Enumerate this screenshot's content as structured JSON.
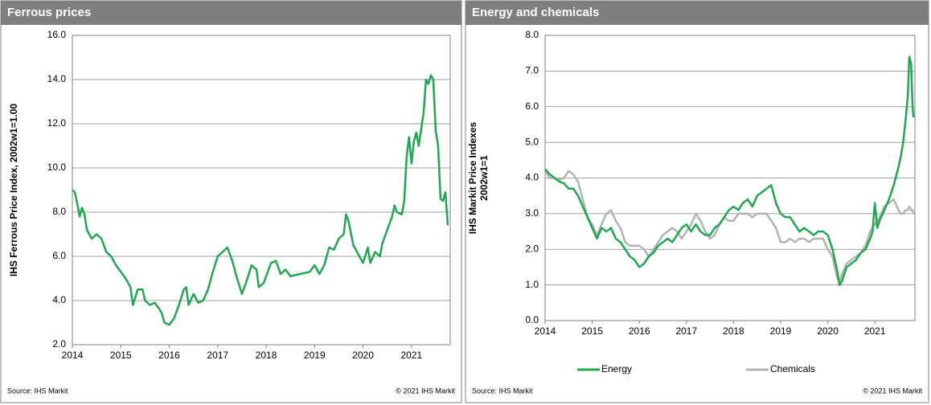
{
  "chart_data": [
    {
      "type": "line",
      "title": "Ferrous prices",
      "ylabel": [
        "IHS Ferrous Price Index, 2002w1=1.00"
      ],
      "source": "Source: IHS Markit",
      "copyright": "© 2021  IHS Markit",
      "color": "#1fa84f",
      "xlim": [
        2014,
        2021.8
      ],
      "xticks": [
        2014,
        2015,
        2016,
        2017,
        2018,
        2019,
        2020,
        2021
      ],
      "ylim": [
        2,
        16
      ],
      "yticks": [
        {
          "value": 2,
          "label": "2.0"
        },
        {
          "value": 4,
          "label": "4.0"
        },
        {
          "value": 6,
          "label": "6.0"
        },
        {
          "value": 8,
          "label": "8.0"
        },
        {
          "value": 10,
          "label": "10.0"
        },
        {
          "value": 12,
          "label": "12.0"
        },
        {
          "value": 14,
          "label": "14.0"
        },
        {
          "value": 16,
          "label": "16.0"
        }
      ],
      "grid": true,
      "x": [
        2014.0,
        2014.05,
        2014.1,
        2014.15,
        2014.2,
        2014.25,
        2014.3,
        2014.4,
        2014.5,
        2014.6,
        2014.7,
        2014.8,
        2014.9,
        2015.0,
        2015.1,
        2015.2,
        2015.25,
        2015.35,
        2015.45,
        2015.5,
        2015.6,
        2015.7,
        2015.8,
        2015.85,
        2015.9,
        2016.0,
        2016.1,
        2016.2,
        2016.3,
        2016.35,
        2016.4,
        2016.5,
        2016.6,
        2016.7,
        2016.8,
        2016.9,
        2017.0,
        2017.1,
        2017.2,
        2017.3,
        2017.4,
        2017.5,
        2017.6,
        2017.7,
        2017.8,
        2017.85,
        2017.95,
        2018.1,
        2018.2,
        2018.3,
        2018.4,
        2018.5,
        2018.7,
        2018.9,
        2019.0,
        2019.1,
        2019.2,
        2019.3,
        2019.4,
        2019.5,
        2019.6,
        2019.65,
        2019.7,
        2019.8,
        2019.9,
        2020.0,
        2020.1,
        2020.15,
        2020.25,
        2020.35,
        2020.4,
        2020.5,
        2020.6,
        2020.65,
        2020.7,
        2020.8,
        2020.85,
        2020.9,
        2020.95,
        2021.0,
        2021.05,
        2021.1,
        2021.15,
        2021.25,
        2021.3,
        2021.35,
        2021.4,
        2021.45,
        2021.5,
        2021.55,
        2021.6,
        2021.65,
        2021.7,
        2021.75
      ],
      "values": [
        9.0,
        8.9,
        8.4,
        7.8,
        8.2,
        7.9,
        7.2,
        6.8,
        7.0,
        6.8,
        6.2,
        6.0,
        5.6,
        5.3,
        5.0,
        4.6,
        3.8,
        4.5,
        4.5,
        4.0,
        3.8,
        3.9,
        3.6,
        3.4,
        3.0,
        2.9,
        3.2,
        3.8,
        4.5,
        4.6,
        3.8,
        4.3,
        3.9,
        4.0,
        4.5,
        5.3,
        6.0,
        6.2,
        6.4,
        5.8,
        5.0,
        4.3,
        4.9,
        5.6,
        5.4,
        4.6,
        4.8,
        5.7,
        5.8,
        5.2,
        5.4,
        5.1,
        5.2,
        5.3,
        5.6,
        5.2,
        5.6,
        6.4,
        6.3,
        6.8,
        7.0,
        7.9,
        7.6,
        6.5,
        6.1,
        5.7,
        6.4,
        5.7,
        6.2,
        6.0,
        6.6,
        7.2,
        7.8,
        8.3,
        8.0,
        7.9,
        8.5,
        10.5,
        11.4,
        10.2,
        11.2,
        11.6,
        11.0,
        12.5,
        14.0,
        13.8,
        14.2,
        14.0,
        11.7,
        11.0,
        8.6,
        8.5,
        8.9,
        7.4
      ]
    },
    {
      "type": "line",
      "title": "Energy and chemicals",
      "ylabel": [
        "IHS Markit Price Indexes",
        "2002w1=1"
      ],
      "source": "Source: IHS Markit",
      "copyright": "© 2021  IHS Markit",
      "xlim": [
        2014,
        2021.85
      ],
      "xticks": [
        2014,
        2015,
        2016,
        2017,
        2018,
        2019,
        2020,
        2021
      ],
      "ylim": [
        0,
        8
      ],
      "yticks": [
        {
          "value": 0,
          "label": "0.0"
        },
        {
          "value": 1,
          "label": "1.0"
        },
        {
          "value": 2,
          "label": "2.0"
        },
        {
          "value": 3,
          "label": "3.0"
        },
        {
          "value": 4,
          "label": "4.0"
        },
        {
          "value": 5,
          "label": "5.0"
        },
        {
          "value": 6,
          "label": "6.0"
        },
        {
          "value": 7,
          "label": "7.0"
        },
        {
          "value": 8,
          "label": "8.0"
        }
      ],
      "grid": true,
      "legend": "bottom",
      "x": [
        2014.0,
        2014.1,
        2014.2,
        2014.3,
        2014.4,
        2014.5,
        2014.6,
        2014.7,
        2014.8,
        2014.9,
        2015.0,
        2015.1,
        2015.2,
        2015.3,
        2015.4,
        2015.5,
        2015.6,
        2015.7,
        2015.8,
        2015.9,
        2016.0,
        2016.1,
        2016.2,
        2016.3,
        2016.4,
        2016.5,
        2016.6,
        2016.7,
        2016.8,
        2016.9,
        2017.0,
        2017.1,
        2017.2,
        2017.3,
        2017.4,
        2017.5,
        2017.6,
        2017.7,
        2017.8,
        2017.9,
        2018.0,
        2018.1,
        2018.2,
        2018.3,
        2018.4,
        2018.5,
        2018.6,
        2018.7,
        2018.8,
        2018.9,
        2019.0,
        2019.1,
        2019.2,
        2019.3,
        2019.4,
        2019.5,
        2019.6,
        2019.7,
        2019.8,
        2019.9,
        2020.0,
        2020.1,
        2020.2,
        2020.25,
        2020.3,
        2020.4,
        2020.5,
        2020.6,
        2020.7,
        2020.8,
        2020.9,
        2020.95,
        2021.0,
        2021.05,
        2021.1,
        2021.2,
        2021.3,
        2021.4,
        2021.5,
        2021.55,
        2021.6,
        2021.65,
        2021.7,
        2021.73,
        2021.77,
        2021.8,
        2021.82
      ],
      "series": [
        {
          "name": "Chemicals",
          "color": "#b3b3b3",
          "values": [
            4.2,
            4.0,
            4.0,
            3.95,
            4.0,
            4.2,
            4.1,
            3.9,
            3.4,
            2.9,
            2.7,
            2.4,
            2.7,
            3.0,
            3.1,
            2.8,
            2.6,
            2.2,
            2.1,
            2.1,
            2.1,
            2.0,
            1.8,
            2.0,
            2.2,
            2.4,
            2.5,
            2.6,
            2.5,
            2.3,
            2.5,
            2.7,
            3.0,
            2.8,
            2.5,
            2.3,
            2.4,
            2.7,
            2.9,
            2.8,
            2.8,
            3.0,
            3.0,
            3.0,
            2.9,
            3.0,
            3.0,
            3.0,
            2.8,
            2.6,
            2.2,
            2.2,
            2.3,
            2.2,
            2.3,
            2.3,
            2.2,
            2.3,
            2.3,
            2.3,
            2.0,
            1.8,
            1.2,
            1.1,
            1.3,
            1.6,
            1.7,
            1.8,
            1.9,
            2.1,
            2.5,
            2.6,
            2.7,
            2.8,
            2.9,
            3.2,
            3.3,
            3.4,
            3.1,
            3.0,
            3.0,
            3.1,
            3.1,
            3.2,
            3.1,
            3.1,
            3.0
          ]
        },
        {
          "name": "Energy",
          "color": "#1fa84f",
          "values": [
            4.25,
            4.1,
            4.0,
            3.9,
            3.85,
            3.7,
            3.7,
            3.5,
            3.2,
            2.9,
            2.6,
            2.3,
            2.6,
            2.5,
            2.6,
            2.3,
            2.2,
            2.0,
            1.8,
            1.7,
            1.5,
            1.6,
            1.8,
            1.9,
            2.1,
            2.2,
            2.3,
            2.2,
            2.4,
            2.6,
            2.7,
            2.5,
            2.7,
            2.5,
            2.4,
            2.4,
            2.6,
            2.7,
            2.9,
            3.1,
            3.2,
            3.1,
            3.3,
            3.4,
            3.2,
            3.5,
            3.6,
            3.7,
            3.8,
            3.3,
            3.0,
            2.9,
            2.9,
            2.7,
            2.5,
            2.6,
            2.5,
            2.4,
            2.5,
            2.5,
            2.4,
            2.0,
            1.4,
            1.0,
            1.1,
            1.5,
            1.6,
            1.7,
            1.9,
            2.0,
            2.3,
            2.5,
            3.3,
            2.6,
            2.8,
            3.1,
            3.4,
            3.8,
            4.3,
            4.6,
            5.0,
            5.6,
            6.3,
            7.4,
            7.2,
            6.0,
            5.7
          ]
        }
      ]
    }
  ]
}
